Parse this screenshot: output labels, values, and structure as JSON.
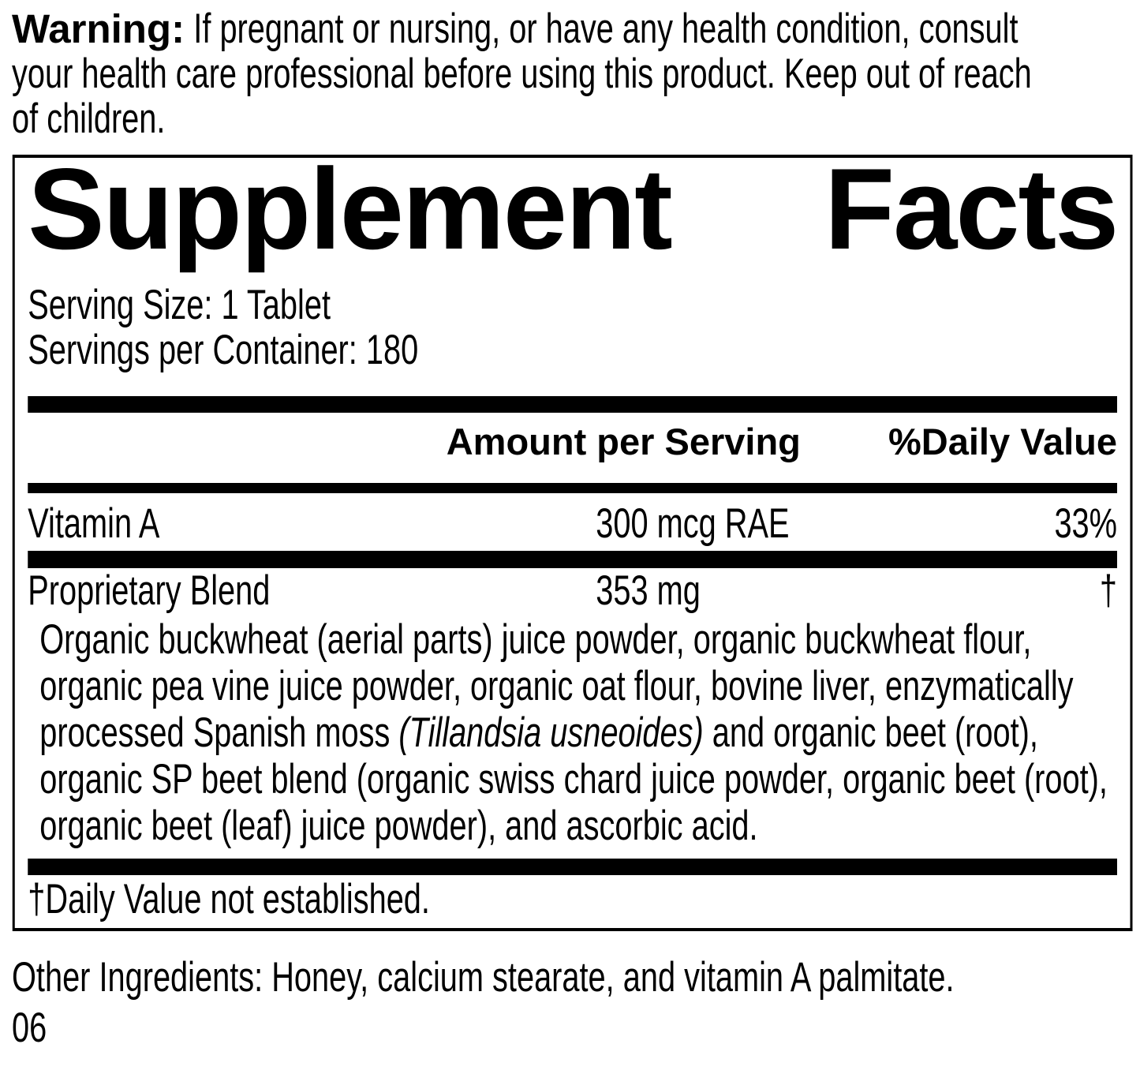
{
  "colors": {
    "ink": "#000000",
    "paper": "#ffffff"
  },
  "warning": {
    "label": "Warning:",
    "lines": [
      "If pregnant or nursing, or have any health condition, consult",
      "your health care professional before using this product. Keep out of reach",
      "of children."
    ]
  },
  "panel": {
    "title": {
      "word1": "Supplement",
      "word2": "Facts"
    },
    "serving_size": "Serving Size: 1 Tablet",
    "servings_per_container": "Servings per Container: 180",
    "columns": {
      "amount": "Amount per Serving",
      "daily_value": "%Daily Value"
    },
    "rows": [
      {
        "name": "Vitamin A",
        "amount": "300 mcg RAE",
        "dv": "33%"
      },
      {
        "name": "Proprietary Blend",
        "amount": "353 mg",
        "dv": "†"
      }
    ],
    "blend_description": {
      "line1": "Organic buckwheat (aerial parts) juice powder, organic buckwheat flour,",
      "line2": "organic pea vine juice powder, organic oat flour, bovine liver, enzymatically",
      "line3_pre": "processed Spanish moss ",
      "line3_italic": "(Tillandsia usneoides)",
      "line3_post": " and organic beet (root),",
      "line4": "organic SP beet blend (organic swiss chard juice powder, organic beet (root),",
      "line5": "organic beet (leaf) juice powder), and ascorbic acid."
    },
    "footnote": "†Daily Value not established."
  },
  "other_ingredients": "Other Ingredients: Honey, calcium stearate, and vitamin A palmitate.",
  "code": "06"
}
